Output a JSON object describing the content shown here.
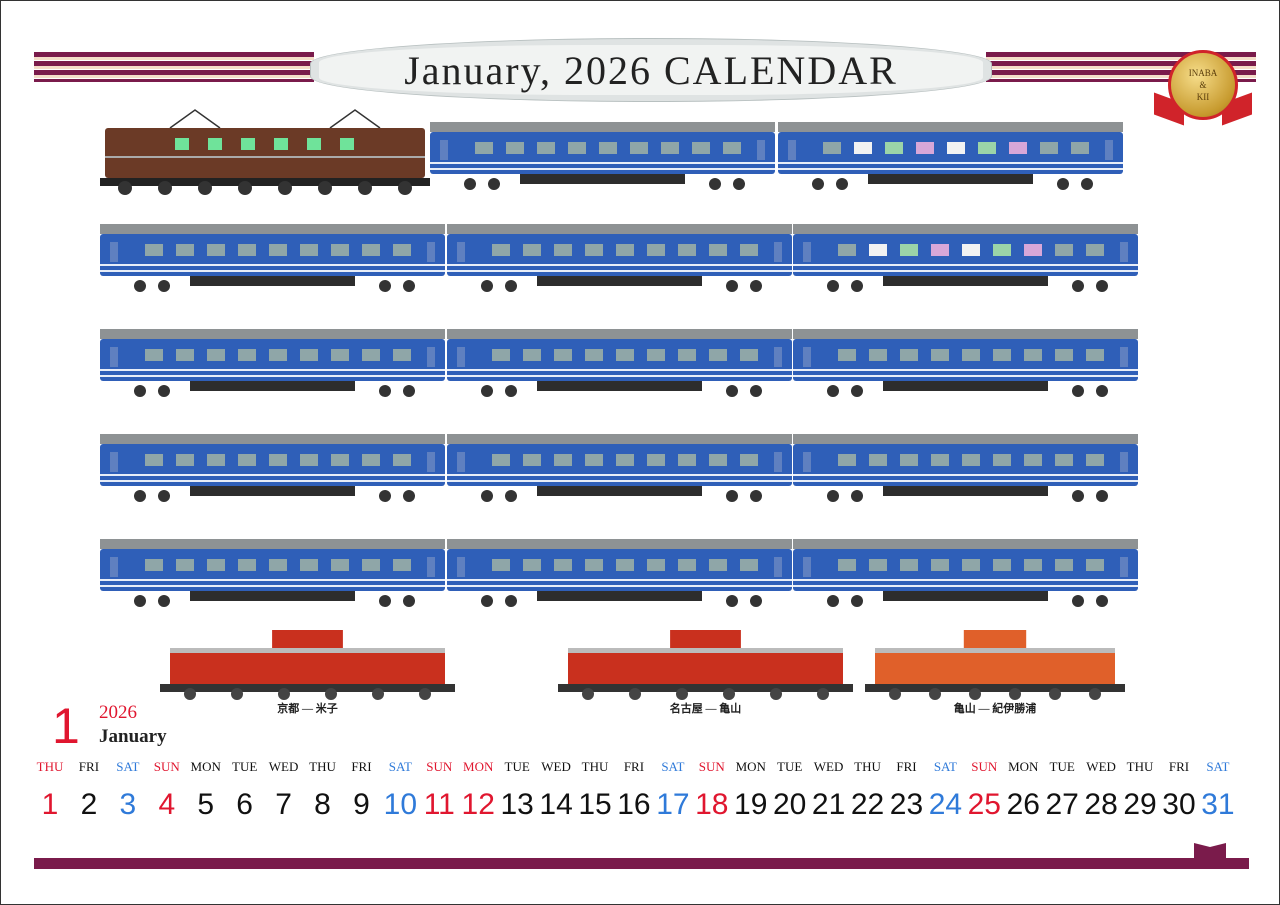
{
  "title": "January, 2026  CALENDAR",
  "seal": {
    "line1": "INABA",
    "line2": "&",
    "line3": "KII"
  },
  "colors": {
    "maroon": "#7a1b4b",
    "cream": "#f4ddc8",
    "red": "#e0162f",
    "blue": "#2f7ad9",
    "black": "#111111",
    "blue_car": "#2f5fb8",
    "brown_loco": "#6b3a26",
    "red_diesel": "#c9301e",
    "orange_diesel": "#e0602a"
  },
  "trains": {
    "rows": [
      [
        "electric-loco-brown",
        "blue-sleeper-car",
        "blue-sleeper-car-lounge"
      ],
      [
        "blue-sleeper-car",
        "blue-sleeper-car",
        "blue-sleeper-car-lounge"
      ],
      [
        "blue-sleeper-car",
        "blue-sleeper-car",
        "blue-sleeper-car-end"
      ],
      [
        "blue-sleeper-car-end",
        "blue-sleeper-car",
        "blue-sleeper-car"
      ],
      [
        "blue-sleeper-car",
        "blue-sleeper-car",
        "blue-sleeper-car-end"
      ]
    ],
    "diesels": [
      {
        "type": "red-diesel-loco",
        "route": "京都 — 米子"
      },
      {
        "type": "red-diesel-loco",
        "route": "名古屋 — 亀山"
      },
      {
        "type": "orange-diesel-loco",
        "route": "亀山 — 紀伊勝浦"
      }
    ]
  },
  "calendar": {
    "month_number": "1",
    "year": "2026",
    "month_name": "January",
    "days": [
      {
        "dow": "THU",
        "day": "1",
        "dow_color": "red",
        "day_color": "red"
      },
      {
        "dow": "FRI",
        "day": "2",
        "dow_color": "black",
        "day_color": "black"
      },
      {
        "dow": "SAT",
        "day": "3",
        "dow_color": "blue",
        "day_color": "blue"
      },
      {
        "dow": "SUN",
        "day": "4",
        "dow_color": "red",
        "day_color": "red"
      },
      {
        "dow": "MON",
        "day": "5",
        "dow_color": "black",
        "day_color": "black"
      },
      {
        "dow": "TUE",
        "day": "6",
        "dow_color": "black",
        "day_color": "black"
      },
      {
        "dow": "WED",
        "day": "7",
        "dow_color": "black",
        "day_color": "black"
      },
      {
        "dow": "THU",
        "day": "8",
        "dow_color": "black",
        "day_color": "black"
      },
      {
        "dow": "FRI",
        "day": "9",
        "dow_color": "black",
        "day_color": "black"
      },
      {
        "dow": "SAT",
        "day": "10",
        "dow_color": "blue",
        "day_color": "blue"
      },
      {
        "dow": "SUN",
        "day": "11",
        "dow_color": "red",
        "day_color": "red"
      },
      {
        "dow": "MON",
        "day": "12",
        "dow_color": "red",
        "day_color": "red"
      },
      {
        "dow": "TUE",
        "day": "13",
        "dow_color": "black",
        "day_color": "black"
      },
      {
        "dow": "WED",
        "day": "14",
        "dow_color": "black",
        "day_color": "black"
      },
      {
        "dow": "THU",
        "day": "15",
        "dow_color": "black",
        "day_color": "black"
      },
      {
        "dow": "FRI",
        "day": "16",
        "dow_color": "black",
        "day_color": "black"
      },
      {
        "dow": "SAT",
        "day": "17",
        "dow_color": "blue",
        "day_color": "blue"
      },
      {
        "dow": "SUN",
        "day": "18",
        "dow_color": "red",
        "day_color": "red"
      },
      {
        "dow": "MON",
        "day": "19",
        "dow_color": "black",
        "day_color": "black"
      },
      {
        "dow": "TUE",
        "day": "20",
        "dow_color": "black",
        "day_color": "black"
      },
      {
        "dow": "WED",
        "day": "21",
        "dow_color": "black",
        "day_color": "black"
      },
      {
        "dow": "THU",
        "day": "22",
        "dow_color": "black",
        "day_color": "black"
      },
      {
        "dow": "FRI",
        "day": "23",
        "dow_color": "black",
        "day_color": "black"
      },
      {
        "dow": "SAT",
        "day": "24",
        "dow_color": "blue",
        "day_color": "blue"
      },
      {
        "dow": "SUN",
        "day": "25",
        "dow_color": "red",
        "day_color": "red"
      },
      {
        "dow": "MON",
        "day": "26",
        "dow_color": "black",
        "day_color": "black"
      },
      {
        "dow": "TUE",
        "day": "27",
        "dow_color": "black",
        "day_color": "black"
      },
      {
        "dow": "WED",
        "day": "28",
        "dow_color": "black",
        "day_color": "black"
      },
      {
        "dow": "THU",
        "day": "29",
        "dow_color": "black",
        "day_color": "black"
      },
      {
        "dow": "FRI",
        "day": "30",
        "dow_color": "black",
        "day_color": "black"
      },
      {
        "dow": "SAT",
        "day": "31",
        "dow_color": "blue",
        "day_color": "blue"
      }
    ]
  }
}
